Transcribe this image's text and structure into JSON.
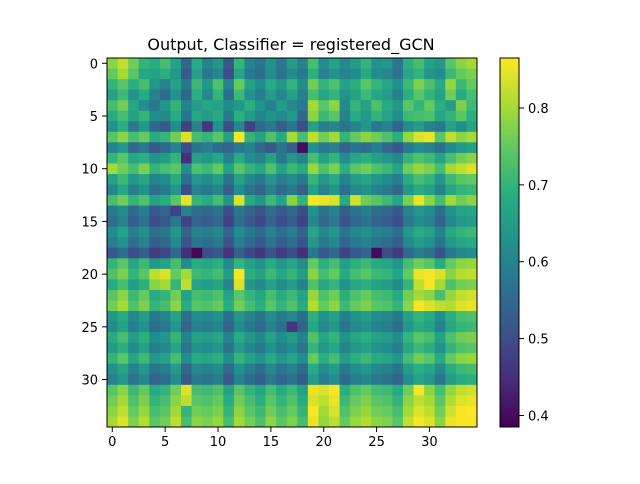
{
  "chart_data": {
    "type": "heatmap",
    "title": "Output, Classifier = registered_GCN",
    "xlabel": "",
    "ylabel": "",
    "rows": 35,
    "cols": 35,
    "colormap": "viridis",
    "vmin": 0.385,
    "vmax": 0.865,
    "x_ticks": [
      0,
      5,
      10,
      15,
      20,
      25,
      30
    ],
    "y_ticks": [
      0,
      5,
      10,
      15,
      20,
      25,
      30
    ],
    "colorbar_ticks": [
      0.4,
      0.5,
      0.6,
      0.7,
      0.8
    ],
    "grid": false,
    "legend": "colorbar-right",
    "values": [
      [
        0.78,
        0.82,
        0.76,
        0.7,
        0.68,
        0.72,
        0.66,
        0.55,
        0.68,
        0.6,
        0.64,
        0.52,
        0.7,
        0.6,
        0.57,
        0.63,
        0.58,
        0.65,
        0.6,
        0.72,
        0.62,
        0.66,
        0.61,
        0.65,
        0.7,
        0.63,
        0.64,
        0.58,
        0.69,
        0.72,
        0.66,
        0.64,
        0.74,
        0.78,
        0.8
      ],
      [
        0.75,
        0.8,
        0.74,
        0.67,
        0.66,
        0.69,
        0.64,
        0.52,
        0.66,
        0.58,
        0.61,
        0.5,
        0.67,
        0.58,
        0.56,
        0.62,
        0.57,
        0.62,
        0.58,
        0.69,
        0.6,
        0.63,
        0.6,
        0.62,
        0.68,
        0.62,
        0.61,
        0.57,
        0.67,
        0.7,
        0.64,
        0.62,
        0.71,
        0.75,
        0.77
      ],
      [
        0.7,
        0.74,
        0.69,
        0.72,
        0.64,
        0.6,
        0.66,
        0.58,
        0.71,
        0.64,
        0.73,
        0.6,
        0.75,
        0.66,
        0.62,
        0.68,
        0.64,
        0.7,
        0.62,
        0.76,
        0.7,
        0.73,
        0.66,
        0.69,
        0.74,
        0.7,
        0.67,
        0.63,
        0.71,
        0.77,
        0.73,
        0.68,
        0.79,
        0.71,
        0.75
      ],
      [
        0.66,
        0.71,
        0.63,
        0.68,
        0.6,
        0.56,
        0.63,
        0.54,
        0.69,
        0.61,
        0.7,
        0.56,
        0.71,
        0.63,
        0.59,
        0.65,
        0.61,
        0.66,
        0.59,
        0.72,
        0.67,
        0.7,
        0.63,
        0.66,
        0.71,
        0.67,
        0.65,
        0.6,
        0.69,
        0.74,
        0.7,
        0.66,
        0.76,
        0.68,
        0.72
      ],
      [
        0.72,
        0.76,
        0.67,
        0.62,
        0.58,
        0.64,
        0.7,
        0.6,
        0.65,
        0.67,
        0.66,
        0.62,
        0.64,
        0.69,
        0.63,
        0.6,
        0.65,
        0.61,
        0.58,
        0.8,
        0.74,
        0.78,
        0.62,
        0.7,
        0.66,
        0.73,
        0.68,
        0.64,
        0.74,
        0.7,
        0.75,
        0.69,
        0.65,
        0.77,
        0.71
      ],
      [
        0.68,
        0.72,
        0.66,
        0.7,
        0.62,
        0.61,
        0.68,
        0.57,
        0.67,
        0.65,
        0.68,
        0.58,
        0.69,
        0.64,
        0.6,
        0.63,
        0.61,
        0.64,
        0.55,
        0.78,
        0.71,
        0.74,
        0.6,
        0.68,
        0.64,
        0.7,
        0.66,
        0.62,
        0.71,
        0.72,
        0.73,
        0.67,
        0.7,
        0.74,
        0.69
      ],
      [
        0.63,
        0.69,
        0.58,
        0.64,
        0.55,
        0.52,
        0.62,
        0.48,
        0.6,
        0.46,
        0.63,
        0.5,
        0.61,
        0.48,
        0.55,
        0.58,
        0.53,
        0.57,
        0.5,
        0.66,
        0.59,
        0.61,
        0.57,
        0.6,
        0.64,
        0.58,
        0.6,
        0.54,
        0.62,
        0.65,
        0.6,
        0.58,
        0.66,
        0.62,
        0.67
      ],
      [
        0.74,
        0.78,
        0.72,
        0.75,
        0.68,
        0.7,
        0.76,
        0.84,
        0.72,
        0.7,
        0.74,
        0.66,
        0.86,
        0.7,
        0.66,
        0.73,
        0.68,
        0.8,
        0.72,
        0.82,
        0.76,
        0.8,
        0.7,
        0.75,
        0.78,
        0.76,
        0.73,
        0.69,
        0.79,
        0.84,
        0.85,
        0.74,
        0.82,
        0.78,
        0.8
      ],
      [
        0.6,
        0.64,
        0.55,
        0.58,
        0.52,
        0.55,
        0.6,
        0.5,
        0.57,
        0.59,
        0.56,
        0.54,
        0.58,
        0.6,
        0.55,
        0.52,
        0.57,
        0.53,
        0.4,
        0.63,
        0.58,
        0.6,
        0.54,
        0.57,
        0.56,
        0.59,
        0.55,
        0.52,
        0.58,
        0.62,
        0.6,
        0.56,
        0.61,
        0.64,
        0.66
      ],
      [
        0.7,
        0.74,
        0.67,
        0.69,
        0.63,
        0.65,
        0.7,
        0.45,
        0.66,
        0.64,
        0.67,
        0.6,
        0.68,
        0.62,
        0.6,
        0.66,
        0.58,
        0.64,
        0.6,
        0.72,
        0.66,
        0.7,
        0.62,
        0.67,
        0.69,
        0.66,
        0.64,
        0.61,
        0.7,
        0.73,
        0.71,
        0.66,
        0.72,
        0.76,
        0.78
      ],
      [
        0.8,
        0.76,
        0.72,
        0.77,
        0.7,
        0.72,
        0.74,
        0.62,
        0.73,
        0.71,
        0.75,
        0.66,
        0.74,
        0.7,
        0.67,
        0.73,
        0.66,
        0.71,
        0.68,
        0.79,
        0.73,
        0.77,
        0.69,
        0.74,
        0.76,
        0.73,
        0.71,
        0.67,
        0.76,
        0.79,
        0.77,
        0.72,
        0.8,
        0.82,
        0.84
      ],
      [
        0.66,
        0.71,
        0.64,
        0.67,
        0.6,
        0.62,
        0.68,
        0.56,
        0.64,
        0.62,
        0.65,
        0.57,
        0.66,
        0.61,
        0.58,
        0.64,
        0.59,
        0.62,
        0.58,
        0.7,
        0.64,
        0.68,
        0.6,
        0.65,
        0.67,
        0.64,
        0.62,
        0.59,
        0.68,
        0.72,
        0.7,
        0.64,
        0.71,
        0.74,
        0.75
      ],
      [
        0.61,
        0.67,
        0.59,
        0.63,
        0.56,
        0.58,
        0.64,
        0.5,
        0.6,
        0.58,
        0.61,
        0.53,
        0.62,
        0.57,
        0.54,
        0.6,
        0.55,
        0.58,
        0.53,
        0.66,
        0.6,
        0.64,
        0.56,
        0.61,
        0.63,
        0.6,
        0.58,
        0.55,
        0.64,
        0.68,
        0.66,
        0.6,
        0.67,
        0.7,
        0.71
      ],
      [
        0.72,
        0.76,
        0.7,
        0.73,
        0.66,
        0.68,
        0.74,
        0.85,
        0.7,
        0.68,
        0.72,
        0.64,
        0.84,
        0.68,
        0.64,
        0.71,
        0.66,
        0.78,
        0.7,
        0.86,
        0.85,
        0.84,
        0.68,
        0.83,
        0.76,
        0.74,
        0.71,
        0.67,
        0.77,
        0.85,
        0.78,
        0.72,
        0.8,
        0.76,
        0.78
      ],
      [
        0.58,
        0.62,
        0.55,
        0.59,
        0.52,
        0.54,
        0.48,
        0.6,
        0.56,
        0.55,
        0.57,
        0.5,
        0.58,
        0.54,
        0.51,
        0.56,
        0.52,
        0.55,
        0.5,
        0.63,
        0.57,
        0.6,
        0.53,
        0.57,
        0.59,
        0.56,
        0.55,
        0.52,
        0.6,
        0.64,
        0.62,
        0.56,
        0.63,
        0.66,
        0.67
      ],
      [
        0.56,
        0.6,
        0.53,
        0.57,
        0.5,
        0.52,
        0.58,
        0.48,
        0.54,
        0.53,
        0.55,
        0.48,
        0.56,
        0.52,
        0.49,
        0.54,
        0.5,
        0.53,
        0.48,
        0.61,
        0.55,
        0.58,
        0.51,
        0.55,
        0.57,
        0.54,
        0.53,
        0.5,
        0.58,
        0.62,
        0.6,
        0.54,
        0.61,
        0.64,
        0.65
      ],
      [
        0.62,
        0.66,
        0.59,
        0.63,
        0.56,
        0.58,
        0.64,
        0.54,
        0.6,
        0.59,
        0.61,
        0.54,
        0.62,
        0.58,
        0.55,
        0.6,
        0.56,
        0.59,
        0.54,
        0.67,
        0.61,
        0.64,
        0.57,
        0.61,
        0.63,
        0.6,
        0.59,
        0.56,
        0.64,
        0.68,
        0.66,
        0.6,
        0.67,
        0.7,
        0.71
      ],
      [
        0.59,
        0.63,
        0.56,
        0.6,
        0.53,
        0.55,
        0.61,
        0.51,
        0.57,
        0.56,
        0.58,
        0.51,
        0.59,
        0.55,
        0.52,
        0.57,
        0.53,
        0.56,
        0.51,
        0.64,
        0.58,
        0.61,
        0.54,
        0.58,
        0.6,
        0.57,
        0.56,
        0.53,
        0.61,
        0.65,
        0.63,
        0.57,
        0.64,
        0.67,
        0.68
      ],
      [
        0.52,
        0.56,
        0.5,
        0.53,
        0.47,
        0.49,
        0.55,
        0.45,
        0.39,
        0.5,
        0.52,
        0.46,
        0.53,
        0.49,
        0.46,
        0.51,
        0.47,
        0.5,
        0.45,
        0.58,
        0.52,
        0.55,
        0.48,
        0.52,
        0.54,
        0.4,
        0.5,
        0.47,
        0.55,
        0.59,
        0.57,
        0.51,
        0.58,
        0.61,
        0.62
      ],
      [
        0.7,
        0.74,
        0.67,
        0.71,
        0.64,
        0.66,
        0.72,
        0.62,
        0.68,
        0.67,
        0.69,
        0.62,
        0.7,
        0.66,
        0.63,
        0.68,
        0.64,
        0.67,
        0.62,
        0.75,
        0.69,
        0.72,
        0.65,
        0.69,
        0.71,
        0.68,
        0.67,
        0.64,
        0.72,
        0.76,
        0.74,
        0.68,
        0.75,
        0.78,
        0.79
      ],
      [
        0.73,
        0.77,
        0.7,
        0.74,
        0.82,
        0.84,
        0.75,
        0.8,
        0.71,
        0.7,
        0.72,
        0.65,
        0.86,
        0.69,
        0.66,
        0.71,
        0.67,
        0.7,
        0.65,
        0.78,
        0.72,
        0.75,
        0.68,
        0.72,
        0.74,
        0.71,
        0.7,
        0.67,
        0.75,
        0.85,
        0.86,
        0.84,
        0.78,
        0.81,
        0.82
      ],
      [
        0.68,
        0.72,
        0.65,
        0.69,
        0.78,
        0.8,
        0.7,
        0.82,
        0.66,
        0.65,
        0.67,
        0.6,
        0.84,
        0.64,
        0.61,
        0.66,
        0.62,
        0.65,
        0.6,
        0.73,
        0.67,
        0.7,
        0.63,
        0.67,
        0.69,
        0.66,
        0.65,
        0.62,
        0.7,
        0.82,
        0.86,
        0.8,
        0.73,
        0.76,
        0.77
      ],
      [
        0.74,
        0.78,
        0.71,
        0.75,
        0.68,
        0.7,
        0.76,
        0.66,
        0.72,
        0.71,
        0.73,
        0.66,
        0.74,
        0.7,
        0.67,
        0.72,
        0.68,
        0.71,
        0.66,
        0.79,
        0.73,
        0.76,
        0.69,
        0.73,
        0.75,
        0.72,
        0.71,
        0.68,
        0.76,
        0.8,
        0.78,
        0.72,
        0.79,
        0.82,
        0.83
      ],
      [
        0.76,
        0.8,
        0.73,
        0.77,
        0.7,
        0.72,
        0.78,
        0.68,
        0.74,
        0.73,
        0.75,
        0.68,
        0.76,
        0.72,
        0.69,
        0.74,
        0.7,
        0.73,
        0.68,
        0.81,
        0.75,
        0.78,
        0.71,
        0.75,
        0.77,
        0.74,
        0.73,
        0.7,
        0.78,
        0.86,
        0.84,
        0.82,
        0.81,
        0.84,
        0.85
      ],
      [
        0.64,
        0.68,
        0.61,
        0.65,
        0.58,
        0.6,
        0.66,
        0.56,
        0.62,
        0.61,
        0.63,
        0.56,
        0.64,
        0.6,
        0.57,
        0.62,
        0.58,
        0.61,
        0.56,
        0.69,
        0.63,
        0.66,
        0.59,
        0.63,
        0.65,
        0.62,
        0.61,
        0.58,
        0.66,
        0.7,
        0.68,
        0.62,
        0.69,
        0.72,
        0.73
      ],
      [
        0.62,
        0.66,
        0.59,
        0.63,
        0.56,
        0.58,
        0.64,
        0.54,
        0.6,
        0.59,
        0.61,
        0.54,
        0.62,
        0.58,
        0.55,
        0.6,
        0.56,
        0.46,
        0.54,
        0.67,
        0.61,
        0.64,
        0.57,
        0.61,
        0.63,
        0.6,
        0.59,
        0.56,
        0.64,
        0.68,
        0.66,
        0.6,
        0.67,
        0.7,
        0.71
      ],
      [
        0.68,
        0.72,
        0.65,
        0.69,
        0.62,
        0.64,
        0.7,
        0.6,
        0.66,
        0.65,
        0.67,
        0.6,
        0.68,
        0.64,
        0.61,
        0.66,
        0.62,
        0.65,
        0.6,
        0.73,
        0.67,
        0.7,
        0.63,
        0.67,
        0.69,
        0.66,
        0.65,
        0.62,
        0.7,
        0.74,
        0.72,
        0.66,
        0.73,
        0.76,
        0.77
      ],
      [
        0.65,
        0.69,
        0.62,
        0.66,
        0.59,
        0.61,
        0.67,
        0.57,
        0.63,
        0.62,
        0.64,
        0.57,
        0.65,
        0.61,
        0.58,
        0.63,
        0.59,
        0.62,
        0.57,
        0.7,
        0.64,
        0.67,
        0.6,
        0.64,
        0.66,
        0.63,
        0.62,
        0.59,
        0.67,
        0.71,
        0.69,
        0.63,
        0.7,
        0.73,
        0.74
      ],
      [
        0.7,
        0.74,
        0.67,
        0.71,
        0.64,
        0.66,
        0.72,
        0.62,
        0.68,
        0.67,
        0.69,
        0.62,
        0.7,
        0.66,
        0.63,
        0.68,
        0.64,
        0.67,
        0.62,
        0.75,
        0.69,
        0.72,
        0.65,
        0.69,
        0.71,
        0.68,
        0.67,
        0.64,
        0.72,
        0.76,
        0.74,
        0.68,
        0.75,
        0.78,
        0.79
      ],
      [
        0.63,
        0.67,
        0.6,
        0.64,
        0.57,
        0.59,
        0.65,
        0.55,
        0.61,
        0.6,
        0.62,
        0.55,
        0.63,
        0.59,
        0.56,
        0.61,
        0.57,
        0.6,
        0.55,
        0.68,
        0.62,
        0.65,
        0.58,
        0.62,
        0.64,
        0.61,
        0.6,
        0.57,
        0.65,
        0.69,
        0.67,
        0.61,
        0.68,
        0.71,
        0.72
      ],
      [
        0.6,
        0.64,
        0.57,
        0.61,
        0.54,
        0.56,
        0.62,
        0.52,
        0.58,
        0.57,
        0.59,
        0.52,
        0.6,
        0.56,
        0.53,
        0.58,
        0.54,
        0.57,
        0.52,
        0.65,
        0.59,
        0.62,
        0.55,
        0.59,
        0.61,
        0.58,
        0.57,
        0.54,
        0.62,
        0.66,
        0.64,
        0.58,
        0.65,
        0.68,
        0.69
      ],
      [
        0.74,
        0.78,
        0.71,
        0.75,
        0.68,
        0.7,
        0.76,
        0.84,
        0.72,
        0.71,
        0.73,
        0.66,
        0.74,
        0.7,
        0.67,
        0.72,
        0.68,
        0.71,
        0.66,
        0.85,
        0.84,
        0.86,
        0.69,
        0.73,
        0.75,
        0.72,
        0.71,
        0.68,
        0.76,
        0.86,
        0.78,
        0.72,
        0.79,
        0.82,
        0.83
      ],
      [
        0.76,
        0.8,
        0.73,
        0.77,
        0.7,
        0.72,
        0.78,
        0.82,
        0.74,
        0.73,
        0.75,
        0.68,
        0.76,
        0.72,
        0.69,
        0.74,
        0.7,
        0.73,
        0.68,
        0.84,
        0.82,
        0.85,
        0.71,
        0.75,
        0.77,
        0.74,
        0.73,
        0.7,
        0.78,
        0.82,
        0.8,
        0.74,
        0.81,
        0.84,
        0.85
      ],
      [
        0.78,
        0.82,
        0.75,
        0.79,
        0.72,
        0.74,
        0.8,
        0.7,
        0.76,
        0.75,
        0.77,
        0.7,
        0.78,
        0.74,
        0.71,
        0.76,
        0.72,
        0.75,
        0.7,
        0.86,
        0.8,
        0.84,
        0.73,
        0.77,
        0.79,
        0.76,
        0.75,
        0.72,
        0.8,
        0.84,
        0.82,
        0.76,
        0.83,
        0.86,
        0.87
      ],
      [
        0.8,
        0.84,
        0.77,
        0.81,
        0.74,
        0.76,
        0.82,
        0.72,
        0.78,
        0.77,
        0.79,
        0.72,
        0.8,
        0.76,
        0.73,
        0.78,
        0.74,
        0.77,
        0.72,
        0.85,
        0.79,
        0.82,
        0.75,
        0.79,
        0.81,
        0.78,
        0.77,
        0.74,
        0.82,
        0.86,
        0.84,
        0.78,
        0.85,
        0.86,
        0.86
      ]
    ]
  }
}
